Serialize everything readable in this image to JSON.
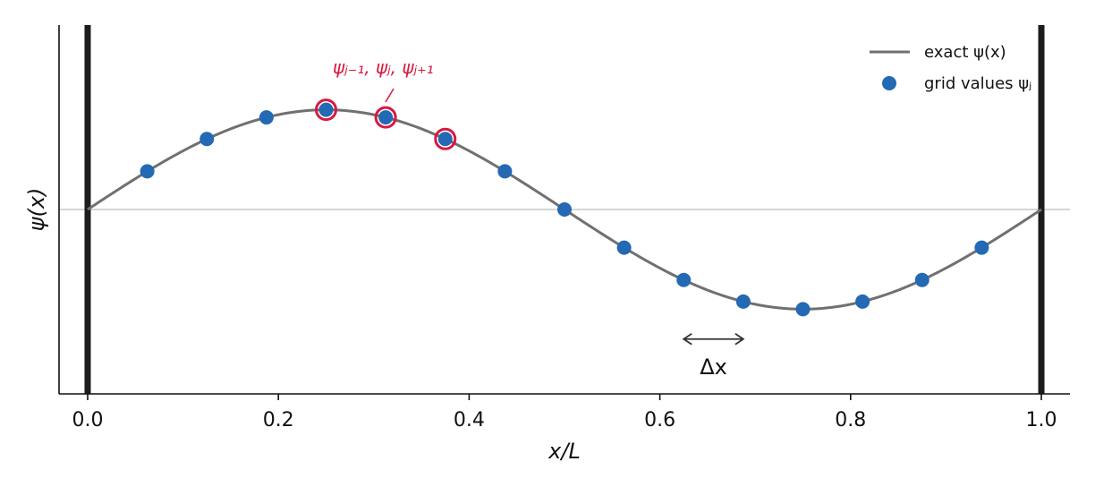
{
  "chart_data": {
    "type": "line",
    "xlabel": "x/L",
    "ylabel": "ψ(x)",
    "xlim": [
      -0.03,
      1.03
    ],
    "ylim": [
      -1.85,
      1.85
    ],
    "x_ticks": [
      0.0,
      0.2,
      0.4,
      0.6,
      0.8,
      1.0
    ],
    "x_tick_labels": [
      "0.0",
      "0.2",
      "0.4",
      "0.6",
      "0.8",
      "1.0"
    ],
    "grid": false,
    "legend_position": "top-right",
    "series": [
      {
        "name": "exact ψ(x)",
        "kind": "line",
        "color": "#707070",
        "function": "sin(2πx/L)"
      },
      {
        "name": "grid values ψⱼ",
        "kind": "scatter",
        "color": "#2369b3",
        "x": [
          0.0625,
          0.125,
          0.1875,
          0.25,
          0.3125,
          0.375,
          0.4375,
          0.5,
          0.5625,
          0.625,
          0.6875,
          0.75,
          0.8125,
          0.875,
          0.9375
        ],
        "y": [
          0.383,
          0.707,
          0.924,
          1.0,
          0.924,
          0.707,
          0.383,
          0.0,
          -0.383,
          -0.707,
          -0.924,
          -1.0,
          -0.924,
          -0.707,
          -0.383
        ]
      }
    ],
    "highlighted_points": {
      "x": [
        0.25,
        0.3125,
        0.375
      ],
      "color": "#d7193f",
      "label": "ψⱼ₋₁,  ψⱼ,  ψⱼ₊₁"
    },
    "walls": {
      "x": [
        0.0,
        1.0
      ],
      "color": "#1c1c1c"
    },
    "zero_line": {
      "y": 0,
      "color": "#c8c8c8"
    },
    "delta_annotation": {
      "x_start": 0.625,
      "x_end": 0.6875,
      "y": -1.3,
      "label": "Δx"
    }
  }
}
